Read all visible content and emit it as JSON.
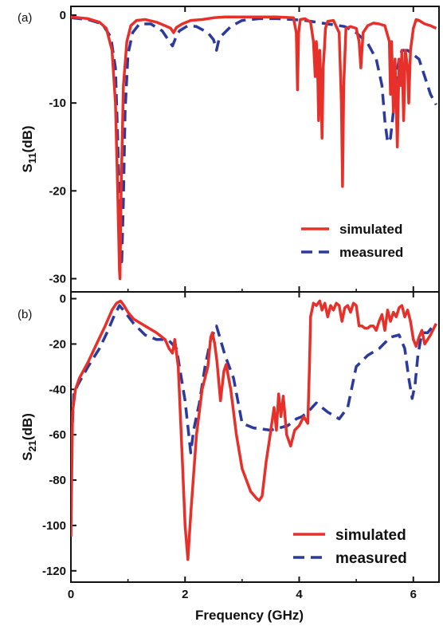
{
  "colors": {
    "simulated": "#e8302a",
    "measured": "#2b3a9c",
    "axis": "#111111"
  },
  "chart_data": [
    {
      "type": "line",
      "panel_label": "(a)",
      "title": "",
      "xlabel": "",
      "ylabel_main": "S",
      "ylabel_sub": "11",
      "ylabel_rest": "(dB)",
      "xlim": [
        0,
        6.45
      ],
      "ylim": [
        -31.5,
        1
      ],
      "xticks": [
        0,
        2,
        4,
        6
      ],
      "yticks": [
        {
          "v": 0,
          "label": "0"
        },
        {
          "v": -10,
          "label": "-10"
        },
        {
          "v": -20,
          "label": "-20"
        },
        {
          "v": -30,
          "label": "-30"
        }
      ],
      "legend_position": "bottom-right",
      "series": [
        {
          "name": "simulated",
          "style": "solid",
          "x": [
            0,
            0.3,
            0.5,
            0.62,
            0.72,
            0.78,
            0.82,
            0.85,
            0.86,
            0.88,
            0.92,
            0.98,
            1.05,
            1.15,
            1.3,
            1.5,
            1.65,
            1.75,
            1.8,
            1.85,
            1.95,
            2.1,
            2.3,
            2.5,
            2.7,
            3.0,
            3.3,
            3.6,
            3.9,
            3.95,
            3.97,
            3.99,
            4.02,
            4.1,
            4.2,
            4.25,
            4.28,
            4.3,
            4.32,
            4.34,
            4.36,
            4.38,
            4.4,
            4.42,
            4.44,
            4.46,
            4.5,
            4.6,
            4.7,
            4.74,
            4.76,
            4.78,
            4.82,
            4.9,
            5.0,
            5.05,
            5.08,
            5.12,
            5.2,
            5.3,
            5.4,
            5.5,
            5.58,
            5.6,
            5.62,
            5.65,
            5.68,
            5.72,
            5.75,
            5.78,
            5.8,
            5.83,
            5.86,
            5.9,
            5.92,
            5.95,
            6.0,
            6.05,
            6.1,
            6.2,
            6.3,
            6.4
          ],
          "y": [
            -0.2,
            -0.4,
            -0.8,
            -1.5,
            -4,
            -10,
            -20,
            -29,
            -30,
            -20,
            -8,
            -3,
            -1.2,
            -0.6,
            -0.5,
            -0.8,
            -1.2,
            -1.5,
            -2,
            -1.4,
            -1.0,
            -0.6,
            -0.5,
            -0.3,
            -0.2,
            -0.2,
            -0.2,
            -0.2,
            -0.3,
            -2,
            -8.5,
            -2,
            -0.5,
            -0.4,
            -0.8,
            -3,
            -7,
            -3,
            -5,
            -12,
            -4,
            -8,
            -14,
            -6,
            -4,
            -1.5,
            -0.7,
            -0.6,
            -2,
            -10,
            -19.5,
            -8,
            -1.5,
            -1.3,
            -1.5,
            -3,
            -6,
            -2,
            -1.2,
            -0.9,
            -1.0,
            -1.2,
            -3,
            -9,
            -3,
            -11,
            -5,
            -15,
            -5,
            -8,
            -4,
            -12,
            -4,
            -6,
            -10,
            -4,
            -1.5,
            -0.5,
            -0.6,
            -1.0,
            -1.2,
            -1.5
          ]
        },
        {
          "name": "measured",
          "style": "dashed",
          "x": [
            0,
            0.3,
            0.55,
            0.7,
            0.78,
            0.82,
            0.86,
            0.89,
            0.92,
            0.95,
            1.0,
            1.08,
            1.2,
            1.4,
            1.6,
            1.78,
            1.84,
            1.9,
            2.05,
            2.2,
            2.4,
            2.5,
            2.55,
            2.6,
            2.8,
            3.0,
            3.3,
            3.6,
            3.9,
            4.1,
            4.3,
            4.5,
            4.8,
            5.0,
            5.2,
            5.35,
            5.45,
            5.5,
            5.55,
            5.6,
            5.65,
            5.7,
            5.75,
            5.8,
            5.85,
            5.9,
            6.0,
            6.1,
            6.2,
            6.3,
            6.4
          ],
          "y": [
            -0.3,
            -0.5,
            -1.0,
            -2.5,
            -6,
            -14,
            -24,
            -28.5,
            -21,
            -11,
            -4.5,
            -2,
            -1,
            -1,
            -1.8,
            -3.5,
            -2.5,
            -1.8,
            -1.2,
            -1.3,
            -2,
            -2.8,
            -4,
            -2.6,
            -1.3,
            -0.6,
            -0.4,
            -0.4,
            -0.5,
            -0.6,
            -0.8,
            -1.0,
            -1.3,
            -2,
            -3.2,
            -5,
            -8,
            -12,
            -14.5,
            -14,
            -11,
            -7,
            -5,
            -4,
            -4,
            -4,
            -4.5,
            -5,
            -7,
            -9,
            -10.2
          ]
        }
      ]
    },
    {
      "type": "line",
      "panel_label": "(b)",
      "title": "",
      "xlabel": "Frequency (GHz)",
      "ylabel_main": "S",
      "ylabel_sub": "21",
      "ylabel_rest": "(dB)",
      "xlim": [
        0,
        6.45
      ],
      "ylim": [
        -125,
        3
      ],
      "xticks": [
        0,
        2,
        4,
        6
      ],
      "yticks": [
        {
          "v": 0,
          "label": "0"
        },
        {
          "v": -20,
          "label": "-20"
        },
        {
          "v": -40,
          "label": "-40"
        },
        {
          "v": -60,
          "label": "-60"
        },
        {
          "v": -80,
          "label": "-80"
        },
        {
          "v": -100,
          "label": "-100"
        },
        {
          "v": -120,
          "label": "-120"
        }
      ],
      "legend_position": "bottom-right",
      "series": [
        {
          "name": "simulated",
          "style": "solid",
          "x": [
            0,
            0.03,
            0.08,
            0.15,
            0.3,
            0.45,
            0.6,
            0.72,
            0.8,
            0.87,
            0.93,
            1.0,
            1.1,
            1.3,
            1.5,
            1.65,
            1.72,
            1.78,
            1.82,
            1.88,
            1.95,
            2.0,
            2.05,
            2.1,
            2.2,
            2.3,
            2.4,
            2.45,
            2.48,
            2.52,
            2.56,
            2.62,
            2.68,
            2.72,
            2.8,
            2.9,
            3.0,
            3.15,
            3.25,
            3.3,
            3.35,
            3.42,
            3.48,
            3.52,
            3.56,
            3.6,
            3.64,
            3.68,
            3.72,
            3.78,
            3.85,
            3.92,
            4.0,
            4.08,
            4.15,
            4.18,
            4.2,
            4.25,
            4.3,
            4.36,
            4.4,
            4.45,
            4.5,
            4.55,
            4.6,
            4.65,
            4.7,
            4.75,
            4.8,
            4.85,
            4.9,
            4.95,
            5.0,
            5.05,
            5.1,
            5.15,
            5.2,
            5.25,
            5.3,
            5.35,
            5.4,
            5.45,
            5.5,
            5.55,
            5.6,
            5.65,
            5.7,
            5.75,
            5.8,
            5.85,
            5.9,
            5.95,
            6.0,
            6.05,
            6.1,
            6.15,
            6.2,
            6.3,
            6.4
          ],
          "y": [
            -105,
            -50,
            -40,
            -35,
            -28,
            -20,
            -12,
            -5,
            -2,
            -1,
            -3,
            -6,
            -9,
            -12,
            -15,
            -18,
            -22,
            -24,
            -18,
            -30,
            -70,
            -100,
            -115,
            -95,
            -60,
            -40,
            -30,
            -17,
            -15,
            -20,
            -28,
            -45,
            -32,
            -29,
            -40,
            -60,
            -75,
            -85,
            -88,
            -89,
            -87,
            -72,
            -62,
            -55,
            -48,
            -58,
            -42,
            -52,
            -43,
            -60,
            -65,
            -58,
            -56,
            -52,
            -55,
            -30,
            -8,
            -2,
            -3,
            -1,
            -5,
            -2,
            -8,
            -3,
            -5,
            -2,
            -3,
            -10,
            -4,
            -3,
            -6,
            -2,
            -3,
            -12,
            -12,
            -13,
            -13,
            -12,
            -12,
            -14,
            -10,
            -7,
            -14,
            -5,
            -10,
            -6,
            -8,
            -4,
            -3,
            -8,
            -5,
            -10,
            -18,
            -21,
            -17,
            -14,
            -20,
            -16,
            -11
          ]
        },
        {
          "name": "measured",
          "style": "dashed",
          "x": [
            0,
            0.05,
            0.12,
            0.3,
            0.5,
            0.65,
            0.75,
            0.85,
            0.95,
            1.1,
            1.3,
            1.5,
            1.7,
            1.85,
            2.0,
            2.1,
            2.15,
            2.25,
            2.35,
            2.45,
            2.55,
            2.7,
            2.85,
            3.0,
            3.2,
            3.5,
            3.8,
            3.95,
            4.05,
            4.15,
            4.3,
            4.5,
            4.7,
            4.85,
            5.0,
            5.2,
            5.4,
            5.6,
            5.75,
            5.85,
            5.92,
            5.98,
            6.03,
            6.08,
            6.15,
            6.25,
            6.35
          ],
          "y": [
            -70,
            -42,
            -38,
            -30,
            -22,
            -14,
            -8,
            -3,
            -6,
            -11,
            -16,
            -18,
            -18,
            -22,
            -45,
            -68,
            -58,
            -46,
            -30,
            -18,
            -12,
            -25,
            -35,
            -55,
            -57,
            -58,
            -56,
            -53,
            -52,
            -50,
            -46,
            -50,
            -53,
            -48,
            -30,
            -25,
            -22,
            -17,
            -16,
            -22,
            -35,
            -44,
            -38,
            -25,
            -15,
            -15,
            -12
          ]
        }
      ]
    }
  ]
}
